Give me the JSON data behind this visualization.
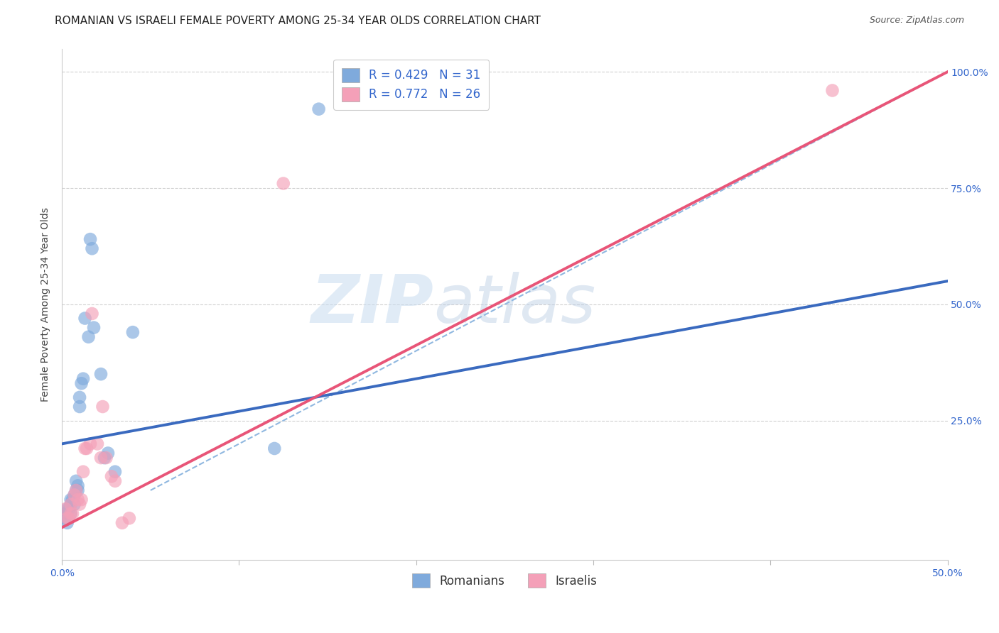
{
  "title": "ROMANIAN VS ISRAELI FEMALE POVERTY AMONG 25-34 YEAR OLDS CORRELATION CHART",
  "source": "Source: ZipAtlas.com",
  "ylabel": "Female Poverty Among 25-34 Year Olds",
  "xlim": [
    0.0,
    50.0
  ],
  "ylim": [
    -5.0,
    105.0
  ],
  "xticks": [
    0.0,
    10.0,
    20.0,
    30.0,
    40.0,
    50.0
  ],
  "xtick_labels": [
    "0.0%",
    "",
    "",
    "",
    "",
    "50.0%"
  ],
  "yticks": [
    0.0,
    25.0,
    50.0,
    75.0,
    100.0
  ],
  "ytick_labels": [
    "",
    "25.0%",
    "50.0%",
    "75.0%",
    "100.0%"
  ],
  "blue_color": "#7faadc",
  "pink_color": "#f4a0b8",
  "blue_line_color": "#3a6abf",
  "pink_line_color": "#e85578",
  "dashed_line_color": "#90b8e0",
  "legend_blue_label": "R = 0.429   N = 31",
  "legend_pink_label": "R = 0.772   N = 26",
  "legend_roman_label": "Romanians",
  "legend_israel_label": "Israelis",
  "watermark_zip": "ZIP",
  "watermark_atlas": "atlas",
  "blue_R": 0.429,
  "blue_N": 31,
  "pink_R": 0.772,
  "pink_N": 26,
  "blue_scatter_x": [
    0.2,
    0.2,
    0.3,
    0.3,
    0.4,
    0.5,
    0.5,
    0.5,
    0.6,
    0.7,
    0.7,
    0.8,
    0.8,
    0.9,
    0.9,
    1.0,
    1.0,
    1.1,
    1.2,
    1.3,
    1.5,
    1.6,
    1.7,
    1.8,
    2.2,
    2.4,
    2.6,
    3.0,
    4.0,
    12.0,
    14.5
  ],
  "blue_scatter_y": [
    4.0,
    5.0,
    3.0,
    6.0,
    6.0,
    5.0,
    7.0,
    8.0,
    8.0,
    7.0,
    9.0,
    10.0,
    12.0,
    10.0,
    11.0,
    28.0,
    30.0,
    33.0,
    34.0,
    47.0,
    43.0,
    64.0,
    62.0,
    45.0,
    35.0,
    17.0,
    18.0,
    14.0,
    44.0,
    19.0,
    92.0
  ],
  "pink_scatter_x": [
    0.2,
    0.3,
    0.4,
    0.5,
    0.5,
    0.6,
    0.7,
    0.8,
    0.9,
    1.0,
    1.1,
    1.2,
    1.3,
    1.4,
    1.6,
    1.7,
    2.0,
    2.2,
    2.3,
    2.5,
    2.8,
    3.0,
    3.4,
    3.8,
    12.5,
    43.5
  ],
  "pink_scatter_y": [
    6.0,
    4.0,
    4.0,
    5.0,
    7.0,
    5.0,
    9.0,
    10.0,
    8.0,
    7.0,
    8.0,
    14.0,
    19.0,
    19.0,
    20.0,
    48.0,
    20.0,
    17.0,
    28.0,
    17.0,
    13.0,
    12.0,
    3.0,
    4.0,
    76.0,
    96.0
  ],
  "blue_line_x": [
    0.0,
    50.0
  ],
  "blue_line_y": [
    20.0,
    55.0
  ],
  "pink_line_x": [
    0.0,
    50.0
  ],
  "pink_line_y": [
    2.0,
    100.0
  ],
  "dashed_line_x": [
    5.0,
    50.0
  ],
  "dashed_line_y": [
    10.0,
    100.0
  ],
  "background_color": "#ffffff",
  "grid_color": "#d0d0d0",
  "title_fontsize": 11,
  "axis_label_fontsize": 10,
  "tick_label_fontsize": 10,
  "tick_label_color": "#3366cc",
  "legend_fontsize": 12,
  "marker_size": 180
}
